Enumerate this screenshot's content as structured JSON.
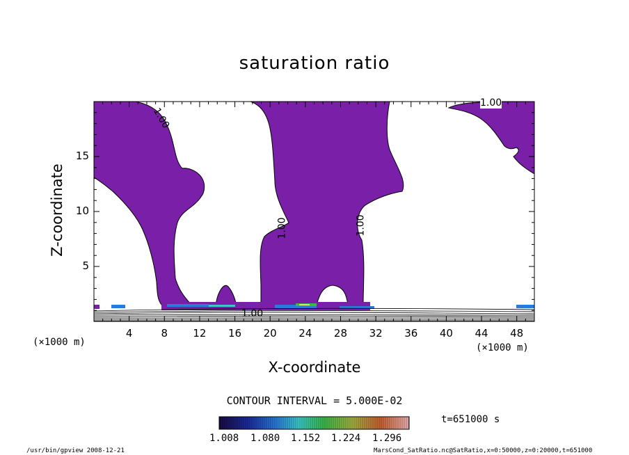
{
  "title": "saturation ratio",
  "chart_data": {
    "type": "contour",
    "title": "saturation ratio",
    "xlabel": "X-coordinate",
    "ylabel": "Z-coordinate",
    "x_unit": "(×1000 m)",
    "x_unit_right": "(×1000 m)",
    "xlim": [
      0,
      50
    ],
    "ylim": [
      0,
      20
    ],
    "x_ticks": [
      4,
      8,
      12,
      16,
      20,
      24,
      28,
      32,
      36,
      40,
      44,
      48
    ],
    "y_ticks": [
      5,
      10,
      15
    ],
    "contour_labels": [
      "1.00",
      "1.00",
      "1.00",
      "1.00",
      "1.00"
    ],
    "fill_color": "#7a1fa8",
    "colorbar": {
      "tick_labels": [
        "1.008",
        "1.080",
        "1.152",
        "1.224",
        "1.296"
      ],
      "range": [
        1.008,
        1.296
      ]
    }
  },
  "contour_interval": "CONTOUR INTERVAL = 5.000E-02",
  "time_label": "t=651000  s",
  "footer_left": "/usr/bin/gpview   2008-12-21",
  "footer_right": "MarsCond_SatRatio.nc@SatRatio,x=0:50000,z=0:20000,t=651000"
}
